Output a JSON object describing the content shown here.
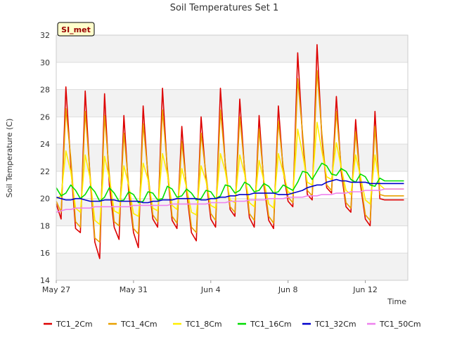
{
  "chart_data": {
    "type": "line",
    "title": "Soil Temperatures Set 1",
    "xlabel": "Time",
    "ylabel": "Soil Temperature (C)",
    "badge": "SI_met",
    "ylim": [
      14,
      32
    ],
    "yticks": [
      "14",
      "16",
      "18",
      "20",
      "22",
      "24",
      "26",
      "28",
      "30",
      "32"
    ],
    "xlim": [
      0,
      18.2
    ],
    "xtick_values": [
      0,
      4,
      8,
      12,
      16
    ],
    "xtick_labels": [
      "May 27",
      "May 31",
      "Jun 4",
      "Jun 8",
      "Jun 12"
    ],
    "grid": true,
    "legend_position": "bottom",
    "x_days": [
      0.0,
      0.25,
      0.5,
      0.75,
      1.0,
      1.25,
      1.5,
      1.75,
      2.0,
      2.25,
      2.5,
      2.75,
      3.0,
      3.25,
      3.5,
      3.75,
      4.0,
      4.25,
      4.5,
      4.75,
      5.0,
      5.25,
      5.5,
      5.75,
      6.0,
      6.25,
      6.5,
      6.75,
      7.0,
      7.25,
      7.5,
      7.75,
      8.0,
      8.25,
      8.5,
      8.75,
      9.0,
      9.25,
      9.5,
      9.75,
      10.0,
      10.25,
      10.5,
      10.75,
      11.0,
      11.25,
      11.5,
      11.75,
      12.0,
      12.25,
      12.5,
      12.75,
      13.0,
      13.25,
      13.5,
      13.75,
      14.0,
      14.25,
      14.5,
      14.75,
      15.0,
      15.25,
      15.5,
      15.75,
      16.0,
      16.25,
      16.5,
      16.75,
      17.0,
      17.25,
      17.5,
      17.75,
      18.0
    ],
    "series": [
      {
        "name": "TC1_2Cm",
        "color": "#dd0000",
        "values": [
          19.6,
          18.5,
          28.2,
          22.5,
          17.8,
          17.5,
          27.9,
          21.5,
          16.8,
          15.6,
          27.7,
          21.0,
          17.9,
          17.0,
          26.1,
          20.5,
          17.5,
          16.4,
          26.8,
          21.5,
          18.5,
          17.9,
          28.1,
          22.0,
          18.4,
          17.8,
          25.3,
          20.5,
          17.5,
          16.9,
          26.0,
          21.5,
          18.5,
          17.9,
          28.1,
          22.5,
          19.2,
          18.7,
          27.3,
          22.0,
          18.6,
          17.9,
          26.1,
          21.0,
          18.4,
          17.8,
          26.8,
          22.0,
          19.8,
          19.4,
          30.7,
          24.5,
          20.3,
          19.9,
          31.3,
          24.5,
          20.8,
          20.4,
          27.5,
          22.0,
          19.4,
          19.0,
          25.8,
          21.0,
          18.5,
          18.0,
          26.4,
          20.0,
          19.9,
          19.9,
          19.9,
          19.9,
          19.9
        ]
      },
      {
        "name": "TC1_4Cm",
        "color": "#e8a000",
        "values": [
          19.8,
          19.0,
          26.6,
          23.0,
          18.3,
          17.9,
          26.4,
          21.8,
          17.1,
          16.8,
          26.1,
          21.8,
          18.3,
          18.0,
          24.8,
          21.0,
          17.8,
          17.4,
          25.5,
          21.8,
          18.8,
          18.3,
          26.5,
          22.3,
          18.7,
          18.2,
          24.2,
          20.8,
          17.9,
          17.5,
          24.8,
          21.8,
          18.9,
          18.4,
          26.5,
          22.6,
          19.4,
          19.0,
          26.0,
          22.2,
          18.9,
          18.4,
          25.1,
          21.3,
          18.7,
          18.2,
          25.7,
          22.3,
          20.1,
          19.7,
          28.8,
          24.8,
          20.6,
          20.2,
          29.4,
          24.8,
          21.0,
          20.6,
          26.4,
          22.3,
          19.7,
          19.3,
          24.9,
          21.3,
          18.8,
          18.4,
          25.3,
          20.3,
          20.2,
          20.2,
          20.2,
          20.2,
          20.2
        ]
      },
      {
        "name": "TC1_8Cm",
        "color": "#ffee00",
        "values": [
          20.0,
          20.2,
          23.5,
          22.0,
          19.3,
          19.0,
          23.2,
          21.5,
          18.4,
          18.1,
          23.1,
          21.5,
          19.1,
          18.9,
          22.4,
          21.0,
          18.9,
          18.7,
          22.6,
          21.4,
          19.3,
          19.1,
          23.3,
          21.8,
          19.5,
          19.2,
          22.2,
          20.8,
          19.0,
          18.8,
          22.4,
          21.3,
          19.5,
          19.3,
          23.3,
          22.0,
          19.9,
          19.7,
          23.2,
          21.8,
          19.7,
          19.4,
          22.8,
          21.3,
          19.6,
          19.3,
          23.3,
          21.9,
          20.5,
          20.3,
          25.1,
          23.3,
          21.2,
          21.0,
          25.6,
          23.5,
          21.6,
          21.4,
          24.1,
          22.3,
          20.6,
          20.3,
          23.2,
          21.6,
          19.9,
          19.6,
          23.2,
          21.0,
          20.7,
          20.7,
          20.7,
          20.7,
          20.7
        ]
      },
      {
        "name": "TC1_16Cm",
        "color": "#00dd00",
        "values": [
          20.8,
          20.2,
          20.4,
          21.0,
          20.6,
          20.0,
          20.3,
          20.9,
          20.5,
          19.8,
          20.1,
          20.8,
          20.4,
          19.8,
          19.9,
          20.5,
          20.3,
          19.7,
          19.8,
          20.5,
          20.4,
          19.9,
          20.0,
          20.9,
          20.7,
          20.1,
          20.2,
          20.7,
          20.4,
          19.9,
          20.0,
          20.6,
          20.5,
          20.0,
          20.2,
          21.0,
          20.9,
          20.4,
          20.6,
          21.2,
          21.0,
          20.5,
          20.6,
          21.1,
          20.9,
          20.4,
          20.5,
          21.0,
          20.8,
          20.6,
          21.2,
          22.0,
          21.9,
          21.4,
          22.0,
          22.6,
          22.4,
          21.8,
          21.7,
          22.2,
          22.0,
          21.4,
          21.2,
          21.8,
          21.6,
          21.0,
          20.9,
          21.5,
          21.3,
          21.3,
          21.3,
          21.3,
          21.3
        ]
      },
      {
        "name": "TC1_32Cm",
        "color": "#0000cc",
        "values": [
          20.1,
          20.0,
          19.9,
          19.9,
          20.0,
          20.0,
          19.9,
          19.8,
          19.8,
          19.8,
          19.9,
          19.9,
          19.9,
          19.8,
          19.8,
          19.8,
          19.8,
          19.8,
          19.7,
          19.7,
          19.8,
          19.8,
          19.9,
          19.9,
          19.9,
          20.0,
          20.0,
          20.0,
          20.0,
          20.0,
          19.9,
          19.9,
          20.0,
          20.0,
          20.1,
          20.1,
          20.2,
          20.2,
          20.3,
          20.3,
          20.3,
          20.4,
          20.4,
          20.4,
          20.4,
          20.4,
          20.3,
          20.3,
          20.3,
          20.4,
          20.5,
          20.6,
          20.8,
          20.9,
          21.0,
          21.0,
          21.2,
          21.3,
          21.4,
          21.3,
          21.3,
          21.2,
          21.2,
          21.2,
          21.2,
          21.1,
          21.1,
          21.1,
          21.1,
          21.1,
          21.1,
          21.1,
          21.1
        ]
      },
      {
        "name": "TC1_50Cm",
        "color": "#ee82ee",
        "values": [
          19.0,
          19.1,
          19.2,
          19.2,
          19.3,
          19.3,
          19.3,
          19.3,
          19.4,
          19.4,
          19.4,
          19.4,
          19.4,
          19.4,
          19.4,
          19.4,
          19.5,
          19.5,
          19.5,
          19.5,
          19.5,
          19.5,
          19.5,
          19.5,
          19.6,
          19.6,
          19.6,
          19.6,
          19.6,
          19.6,
          19.6,
          19.6,
          19.7,
          19.7,
          19.7,
          19.7,
          19.8,
          19.8,
          19.8,
          19.8,
          19.9,
          19.9,
          19.9,
          19.9,
          20.0,
          20.0,
          20.0,
          20.0,
          20.1,
          20.1,
          20.1,
          20.1,
          20.2,
          20.2,
          20.2,
          20.3,
          20.3,
          20.3,
          20.4,
          20.4,
          20.4,
          20.5,
          20.5,
          20.5,
          20.6,
          20.6,
          20.6,
          20.6,
          20.7,
          20.7,
          20.7,
          20.7,
          20.7
        ]
      }
    ]
  }
}
